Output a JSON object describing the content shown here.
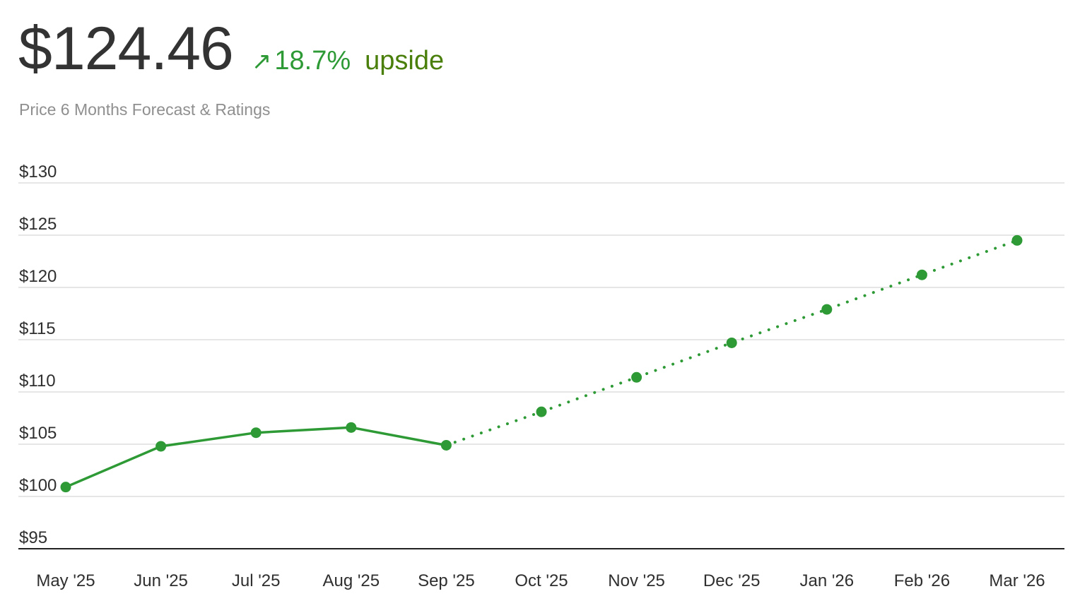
{
  "header": {
    "price": "$124.46",
    "arrow_icon": "↗",
    "change_pct": "18.7%",
    "change_label": "upside",
    "subtitle": "Price 6 Months Forecast & Ratings"
  },
  "colors": {
    "accent_green": "#2e9a36",
    "upside_green": "#4a7f0c",
    "grid": "#dddddd",
    "axis": "#222222"
  },
  "chart_data": {
    "type": "line",
    "title": "",
    "xlabel": "",
    "ylabel": "",
    "categories": [
      "May '25",
      "Jun '25",
      "Jul '25",
      "Aug '25",
      "Sep '25",
      "Oct '25",
      "Nov '25",
      "Dec '25",
      "Jan '26",
      "Feb '26",
      "Mar '26"
    ],
    "y_ticks": [
      "$130",
      "$125",
      "$120",
      "$115",
      "$110",
      "$105",
      "$100",
      "$95"
    ],
    "y_tick_values": [
      130,
      125,
      120,
      115,
      110,
      105,
      100,
      95
    ],
    "ylim": [
      95,
      130
    ],
    "grid": true,
    "series": [
      {
        "style": "solid",
        "values": [
          100.9,
          104.8,
          106.1,
          106.6,
          104.9,
          null,
          null,
          null,
          null,
          null,
          null
        ]
      },
      {
        "style": "dotted",
        "values": [
          null,
          null,
          null,
          null,
          104.9,
          108.1,
          111.4,
          114.7,
          117.9,
          121.2,
          124.5
        ]
      }
    ]
  }
}
